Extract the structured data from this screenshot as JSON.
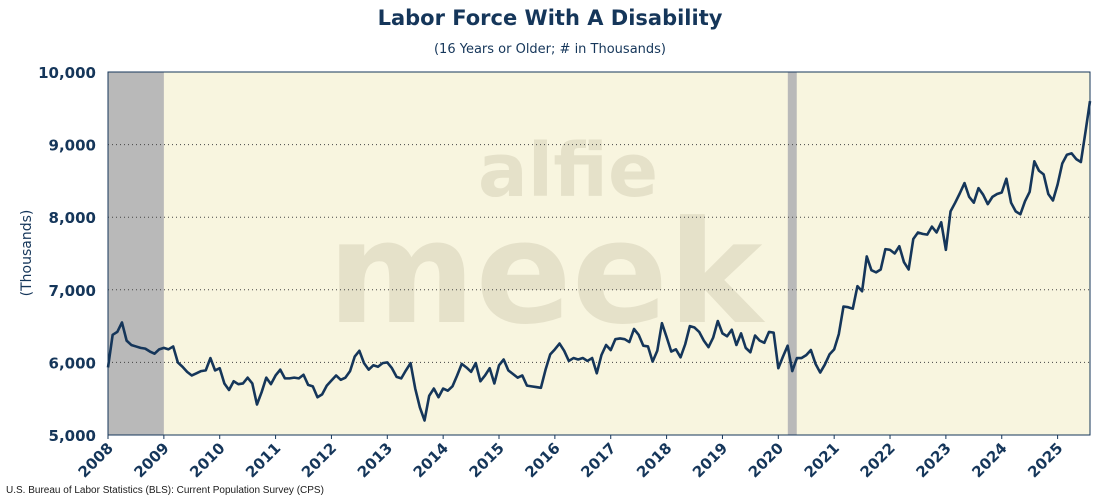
{
  "chart_data": {
    "type": "line",
    "title": "Labor Force With A Disability",
    "subtitle": "(16 Years or Older; # in Thousands)",
    "ylabel": "(Thousands)",
    "xlabel": "",
    "ylim": [
      5000,
      10000
    ],
    "xlim": [
      2008.0,
      2025.58
    ],
    "y_ticks": [
      5000,
      6000,
      7000,
      8000,
      9000,
      10000
    ],
    "y_tick_labels": [
      "5,000",
      "6,000",
      "7,000",
      "8,000",
      "9,000",
      "10,000"
    ],
    "x_tick_labels": [
      "2008",
      "2009",
      "2010",
      "2011",
      "2012",
      "2013",
      "2014",
      "2015",
      "2016",
      "2017",
      "2018",
      "2019",
      "2020",
      "2021",
      "2022",
      "2023",
      "2024",
      "2025"
    ],
    "grid": "horizontal dotted",
    "watermark": "alfie meek",
    "recessions": [
      {
        "start": 2008.0,
        "end": 2009.0
      },
      {
        "start": 2020.17,
        "end": 2020.33
      }
    ],
    "colors": {
      "line": "#15365a",
      "plot_bg": "#f8f5df",
      "recession": "#b9b9b9",
      "text": "#15365a"
    },
    "series": [
      {
        "name": "Labor Force With A Disability",
        "start": 2008.0,
        "step": 0.0833333,
        "values": [
          5930,
          6380,
          6420,
          6550,
          6300,
          6240,
          6220,
          6200,
          6190,
          6150,
          6120,
          6180,
          6200,
          6180,
          6220,
          6000,
          5940,
          5870,
          5820,
          5850,
          5880,
          5890,
          6060,
          5890,
          5920,
          5710,
          5620,
          5740,
          5700,
          5710,
          5790,
          5710,
          5420,
          5590,
          5790,
          5700,
          5820,
          5900,
          5780,
          5780,
          5790,
          5780,
          5830,
          5690,
          5670,
          5520,
          5560,
          5680,
          5750,
          5820,
          5760,
          5790,
          5880,
          6080,
          6160,
          5990,
          5900,
          5960,
          5940,
          5990,
          6000,
          5920,
          5800,
          5780,
          5890,
          5990,
          5640,
          5380,
          5200,
          5540,
          5640,
          5520,
          5640,
          5610,
          5670,
          5820,
          5980,
          5930,
          5870,
          5990,
          5740,
          5820,
          5920,
          5710,
          5960,
          6040,
          5890,
          5840,
          5790,
          5820,
          5680,
          5670,
          5660,
          5650,
          5900,
          6110,
          6180,
          6260,
          6160,
          6020,
          6060,
          6040,
          6060,
          6020,
          6060,
          5850,
          6100,
          6240,
          6170,
          6320,
          6330,
          6320,
          6280,
          6460,
          6380,
          6230,
          6220,
          6010,
          6160,
          6540,
          6350,
          6150,
          6180,
          6070,
          6250,
          6500,
          6480,
          6420,
          6300,
          6210,
          6340,
          6570,
          6400,
          6360,
          6450,
          6240,
          6400,
          6200,
          6140,
          6370,
          6300,
          6270,
          6420,
          6410,
          5920,
          6080,
          6230,
          5880,
          6060,
          6060,
          6100,
          6170,
          5980,
          5860,
          5970,
          6110,
          6180,
          6390,
          6770,
          6760,
          6740,
          7050,
          6980,
          7460,
          7270,
          7240,
          7280,
          7560,
          7550,
          7500,
          7600,
          7380,
          7280,
          7700,
          7790,
          7770,
          7760,
          7870,
          7790,
          7930,
          7550,
          8080,
          8200,
          8330,
          8470,
          8280,
          8200,
          8400,
          8310,
          8180,
          8280,
          8320,
          8340,
          8530,
          8200,
          8080,
          8040,
          8220,
          8350,
          8770,
          8640,
          8590,
          8320,
          8230,
          8450,
          8740,
          8860,
          8880,
          8800,
          8760,
          9180,
          9600
        ]
      }
    ]
  },
  "source_note": "U.S. Bureau of Labor Statistics (BLS): Current Population Survey (CPS)"
}
